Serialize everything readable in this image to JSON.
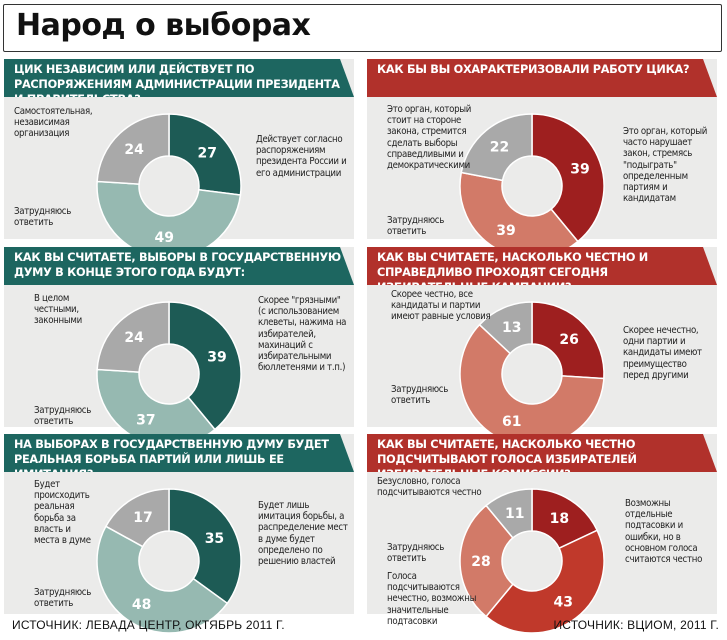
{
  "title": "Народ о выборах",
  "source_left": "ИСТОЧНИК: ЛЕВАДА ЦЕНТР, ОКТЯБРЬ 2011 Г.",
  "source_right": "ИСТОЧНИК: ВЦИОМ, 2011 Г.",
  "colors": {
    "teal_dark": "#1d5b55",
    "teal_light": "#96b9b1",
    "red_dark": "#9e1f1f",
    "red_light": "#d27a68",
    "red_mid": "#c0392b",
    "gray": "#a9a9a9",
    "panel_bg": "#ebebea"
  },
  "chart_data": [
    {
      "type": "pie",
      "title": "ЦИК НЕЗАВИСИМ ИЛИ ДЕЙСТВУЕТ ПО РАСПОРЯЖЕНИЯМ АДМИНИСТРАЦИИ ПРЕЗИДЕНТА И ПРАВИТЕЛЬСТВА?",
      "slices": [
        {
          "label": "Самостоятельная, независимая организация",
          "value": 27,
          "color": "#1d5b55"
        },
        {
          "label": "Действует согласно распоряжениям президента России и его администрации",
          "value": 49,
          "color": "#96b9b1"
        },
        {
          "label": "Затрудняюсь ответить",
          "value": 24,
          "color": "#a9a9a9"
        }
      ]
    },
    {
      "type": "pie",
      "title": "КАК БЫ ВЫ ОХАРАКТЕРИЗОВАЛИ РАБОТУ ЦИКА?",
      "slices": [
        {
          "label": "Это орган, который стоит на стороне закона, стремится сделать выборы справедливыми и демократическими",
          "value": 39,
          "color": "#9e1f1f"
        },
        {
          "label": "Это орган, который часто нарушает закон, стремясь \"подыграть\" определенным партиям и кандидатам",
          "value": 39,
          "color": "#d27a68"
        },
        {
          "label": "Затрудняюсь ответить",
          "value": 22,
          "color": "#a9a9a9"
        }
      ]
    },
    {
      "type": "pie",
      "title": "КАК ВЫ СЧИТАЕТЕ, ВЫБОРЫ В ГОСУДАРСТВЕННУЮ ДУМУ В КОНЦЕ ЭТОГО ГОДА БУДУТ:",
      "slices": [
        {
          "label": "В целом честными, законными",
          "value": 39,
          "color": "#1d5b55"
        },
        {
          "label": "Скорее \"грязными\" (с использованием клеветы, нажима на избирателей, махинаций с избирательными бюллетенями и т.п.)",
          "value": 37,
          "color": "#96b9b1"
        },
        {
          "label": "Затрудняюсь ответить",
          "value": 24,
          "color": "#a9a9a9"
        }
      ]
    },
    {
      "type": "pie",
      "title": "КАК ВЫ СЧИТАЕТЕ, НАСКОЛЬКО ЧЕСТНО И СПРАВЕДЛИВО ПРОХОДЯТ СЕГОДНЯ ИЗБИРАТЕЛЬНЫЕ КАМПАНИИ?",
      "slices": [
        {
          "label": "Скорее честно, все кандидаты и партии имеют равные условия",
          "value": 26,
          "color": "#9e1f1f"
        },
        {
          "label": "Скорее нечестно, одни партии и кандидаты имеют преимущество перед другими",
          "value": 61,
          "color": "#d27a68"
        },
        {
          "label": "Затрудняюсь ответить",
          "value": 13,
          "color": "#a9a9a9"
        }
      ]
    },
    {
      "type": "pie",
      "title": "НА ВЫБОРАХ В ГОСУДАРСТВЕННУЮ ДУМУ БУДЕТ РЕАЛЬНАЯ БОРЬБА ПАРТИЙ ИЛИ ЛИШЬ ЕЕ ИМИТАЦИЯ?",
      "slices": [
        {
          "label": "Будет происходить реальная борьба за власть и места в думе",
          "value": 35,
          "color": "#1d5b55"
        },
        {
          "label": "Будет лишь имитация борьбы, а распределение мест в думе будет определено по решению властей",
          "value": 48,
          "color": "#96b9b1"
        },
        {
          "label": "Затрудняюсь ответить",
          "value": 17,
          "color": "#a9a9a9"
        }
      ]
    },
    {
      "type": "pie",
      "title": "КАК ВЫ СЧИТАЕТЕ, НАСКОЛЬКО ЧЕСТНО ПОДСЧИТЫВАЮТ ГОЛОСА ИЗБИРАТЕЛЕЙ ИЗБИРАТЕЛЬНЫЕ КОМИССИИ?",
      "slices": [
        {
          "label": "Безусловно, голоса подсчитываются честно",
          "value": 18,
          "color": "#9e1f1f"
        },
        {
          "label": "Возможны отдельные подтасовки и ошибки, но в основном голоса считаются честно",
          "value": 43,
          "color": "#c0392b"
        },
        {
          "label": "Голоса подсчитываются нечестно, возможны значительные подтасовки",
          "value": 28,
          "color": "#d27a68"
        },
        {
          "label": "Затрудняюсь ответить",
          "value": 11,
          "color": "#a9a9a9"
        }
      ]
    }
  ]
}
